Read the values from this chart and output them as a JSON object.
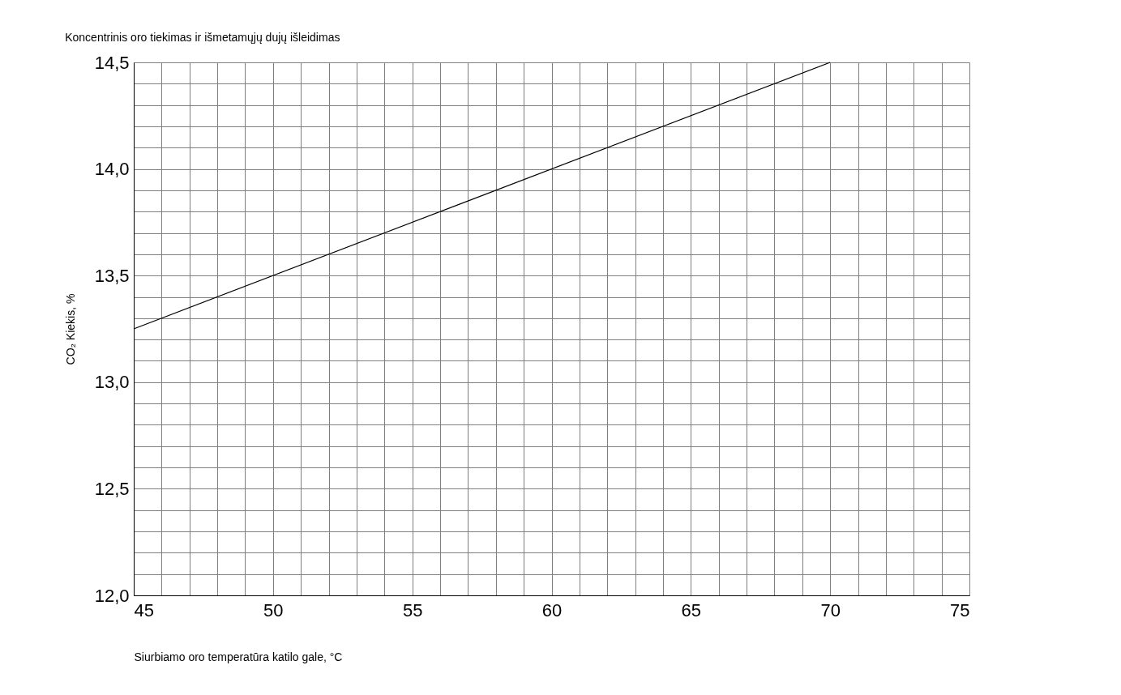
{
  "chart_data": {
    "type": "line",
    "title": "Koncentrinis oro tiekimas ir išmetamųjų dujų išleidimas",
    "xlabel": "Siurbiamo oro temperatūra katilo gale, °C",
    "ylabel": "CO₂ Kiekis, %",
    "x": [
      45,
      70
    ],
    "series": [
      {
        "color": "#000000",
        "values": [
          13.25,
          14.5
        ]
      }
    ],
    "xlim": [
      45,
      75
    ],
    "ylim": [
      12.0,
      14.5
    ],
    "xticks": [
      45,
      {
        "value": 46,
        "label": null
      },
      {
        "value": 47,
        "label": null
      },
      {
        "value": 48,
        "label": null
      },
      {
        "value": 49,
        "label": null
      },
      50,
      {
        "value": 51,
        "label": null
      },
      {
        "value": 52,
        "label": null
      },
      {
        "value": 53,
        "label": null
      },
      {
        "value": 54,
        "label": null
      },
      55,
      {
        "value": 56,
        "label": null
      },
      {
        "value": 57,
        "label": null
      },
      {
        "value": 58,
        "label": null
      },
      {
        "value": 59,
        "label": null
      },
      60,
      {
        "value": 61,
        "label": null
      },
      {
        "value": 62,
        "label": null
      },
      {
        "value": 63,
        "label": null
      },
      {
        "value": 64,
        "label": null
      },
      65,
      {
        "value": 66,
        "label": null
      },
      {
        "value": 67,
        "label": null
      },
      {
        "value": 68,
        "label": null
      },
      {
        "value": 69,
        "label": null
      },
      70,
      {
        "value": 71,
        "label": null
      },
      {
        "value": 72,
        "label": null
      },
      {
        "value": 73,
        "label": null
      },
      {
        "value": 74,
        "label": null
      },
      75
    ],
    "yticks": [
      {
        "value": 12.0,
        "label": "12,0"
      },
      {
        "value": 12.1,
        "label": null
      },
      {
        "value": 12.2,
        "label": null
      },
      {
        "value": 12.3,
        "label": null
      },
      {
        "value": 12.4,
        "label": null
      },
      {
        "value": 12.5,
        "label": "12,5"
      },
      {
        "value": 12.6,
        "label": null
      },
      {
        "value": 12.7,
        "label": null
      },
      {
        "value": 12.8,
        "label": null
      },
      {
        "value": 12.9,
        "label": null
      },
      {
        "value": 13.0,
        "label": "13,0"
      },
      {
        "value": 13.1,
        "label": null
      },
      {
        "value": 13.2,
        "label": null
      },
      {
        "value": 13.3,
        "label": null
      },
      {
        "value": 13.4,
        "label": null
      },
      {
        "value": 13.5,
        "label": "13,5"
      },
      {
        "value": 13.6,
        "label": null
      },
      {
        "value": 13.7,
        "label": null
      },
      {
        "value": 13.8,
        "label": null
      },
      {
        "value": 13.9,
        "label": null
      },
      {
        "value": 14.0,
        "label": "14,0"
      },
      {
        "value": 14.1,
        "label": null
      },
      {
        "value": 14.2,
        "label": null
      },
      {
        "value": 14.3,
        "label": null
      },
      {
        "value": 14.4,
        "label": null
      },
      {
        "value": 14.5,
        "label": "14,5"
      }
    ],
    "grid": true,
    "line_style": "solid",
    "marker": "none"
  }
}
